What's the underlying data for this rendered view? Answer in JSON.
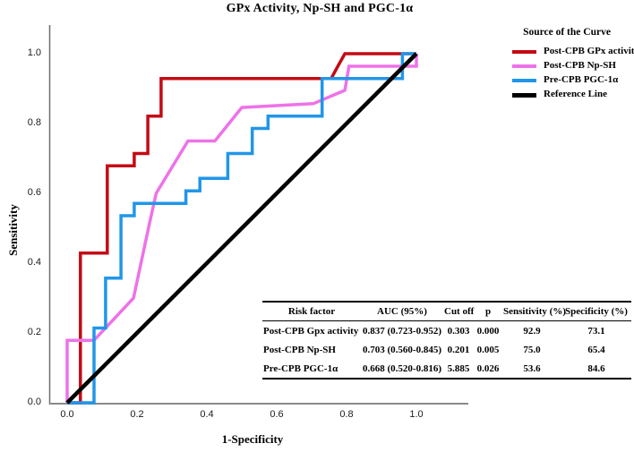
{
  "chart_data": {
    "type": "line",
    "subtype": "roc-curve",
    "title": "GPx Activity, Np-SH and PGC-1α",
    "xlabel": "1-Specificity",
    "ylabel": "Sensitivity",
    "xlim": [
      0.0,
      1.0
    ],
    "ylim": [
      0.0,
      1.0
    ],
    "xticks": [
      0.0,
      0.2,
      0.4,
      0.6,
      0.8,
      1.0
    ],
    "xtick_labels": [
      "0.0",
      "0.2",
      "0.4",
      "0.6",
      "0.8",
      "1.0"
    ],
    "yticks": [
      0.0,
      0.2,
      0.4,
      0.6,
      0.8,
      1.0
    ],
    "ytick_labels": [
      "0.0",
      "0.2",
      "0.4",
      "0.6",
      "0.8",
      "1.0"
    ],
    "grid": false,
    "axis_color": "#6e6e6e",
    "legend": {
      "title": "Source of the Curve",
      "position": "top-right"
    },
    "series": [
      {
        "name": "Post-CPB GPx activity",
        "color": "#c40a14",
        "line_width": 3.5,
        "points": [
          [
            0,
            0
          ],
          [
            0.038,
            0
          ],
          [
            0.038,
            0.429
          ],
          [
            0.115,
            0.429
          ],
          [
            0.115,
            0.679
          ],
          [
            0.192,
            0.679
          ],
          [
            0.192,
            0.714
          ],
          [
            0.231,
            0.714
          ],
          [
            0.231,
            0.821
          ],
          [
            0.269,
            0.821
          ],
          [
            0.269,
            0.929
          ],
          [
            0.756,
            0.929
          ],
          [
            0.775,
            0.964
          ],
          [
            0.795,
            1.0
          ],
          [
            1,
            1
          ]
        ]
      },
      {
        "name": "Post-CPB Np-SH",
        "color": "#ee72e8",
        "line_width": 3.5,
        "points": [
          [
            0,
            0
          ],
          [
            0,
            0.179
          ],
          [
            0.077,
            0.179
          ],
          [
            0.19,
            0.3
          ],
          [
            0.235,
            0.51
          ],
          [
            0.255,
            0.6
          ],
          [
            0.346,
            0.75
          ],
          [
            0.423,
            0.75
          ],
          [
            0.5,
            0.846
          ],
          [
            0.705,
            0.857
          ],
          [
            0.795,
            0.895
          ],
          [
            0.807,
            0.964
          ],
          [
            1.0,
            0.964
          ],
          [
            1,
            1
          ]
        ]
      },
      {
        "name": "Pre-CPB PGC-1α",
        "color": "#2196e8",
        "line_width": 3.5,
        "points": [
          [
            0,
            0
          ],
          [
            0.077,
            0
          ],
          [
            0.077,
            0.214
          ],
          [
            0.11,
            0.214
          ],
          [
            0.11,
            0.357
          ],
          [
            0.154,
            0.357
          ],
          [
            0.154,
            0.536
          ],
          [
            0.192,
            0.536
          ],
          [
            0.192,
            0.571
          ],
          [
            0.34,
            0.571
          ],
          [
            0.34,
            0.607
          ],
          [
            0.38,
            0.607
          ],
          [
            0.38,
            0.643
          ],
          [
            0.46,
            0.643
          ],
          [
            0.46,
            0.714
          ],
          [
            0.53,
            0.714
          ],
          [
            0.53,
            0.786
          ],
          [
            0.575,
            0.786
          ],
          [
            0.575,
            0.821
          ],
          [
            0.73,
            0.821
          ],
          [
            0.73,
            0.929
          ],
          [
            0.96,
            0.929
          ],
          [
            0.96,
            1.0
          ],
          [
            1,
            1
          ]
        ]
      },
      {
        "name": "Reference Line",
        "color": "#000000",
        "line_width": 4.5,
        "points": [
          [
            0,
            0
          ],
          [
            1,
            1
          ]
        ]
      }
    ]
  },
  "table": {
    "columns": [
      "Risk factor",
      "AUC (95%)",
      "Cut off",
      "p",
      "Sensitivity (%)",
      "Specificity (%)"
    ],
    "rows": [
      [
        "Post-CPB Gpx activity",
        "0.837 (0.723-0.952)",
        "0.303",
        "0.000",
        "92.9",
        "73.1"
      ],
      [
        "Post-CPB Np-SH",
        "0.703 (0.560-0.845)",
        "0.201",
        "0.005",
        "75.0",
        "65.4"
      ],
      [
        "Pre-CPB PGC-1α",
        "0.668 (0.520-0.816)",
        "5.885",
        "0.026",
        "53.6",
        "84.6"
      ]
    ]
  }
}
